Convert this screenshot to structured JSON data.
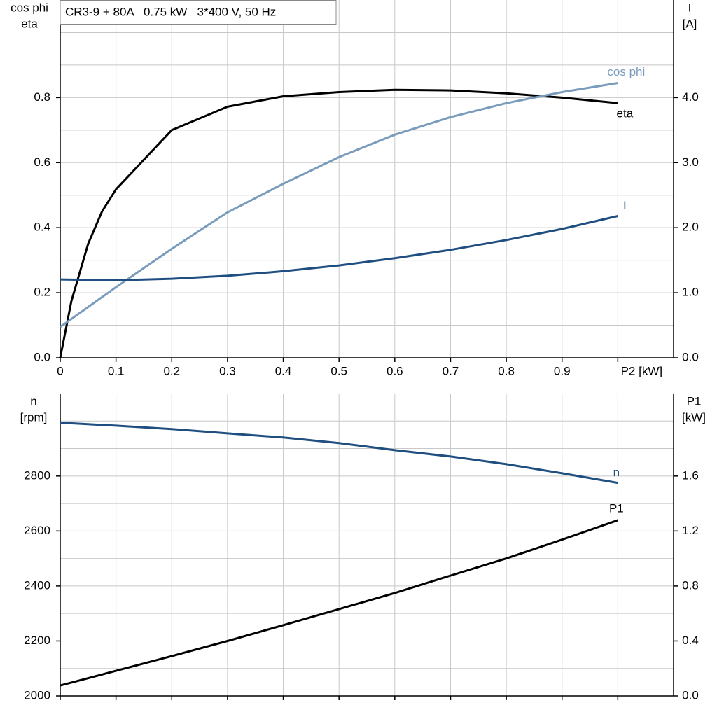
{
  "chart_data": [
    {
      "type": "line",
      "title": "CR3-9 + 80A   0.75 kW   3*400 V, 50 Hz",
      "ylabel": [
        "cos phi",
        "eta"
      ],
      "y2label": [
        "I",
        "[A]"
      ],
      "xlim": [
        0,
        1.1
      ],
      "xticks": [
        0,
        0.1,
        0.2,
        0.3,
        0.4,
        0.5,
        0.6,
        0.7,
        0.8,
        0.9,
        {
          "value": 1.0,
          "label": "P2 [kW]"
        }
      ],
      "ylim": [
        0,
        1.1
      ],
      "yticks": [
        {
          "value": 0,
          "label": "0.0"
        },
        0.2,
        0.4,
        0.6,
        0.8
      ],
      "minor_yticks": [
        0.1,
        0.3,
        0.5,
        0.7,
        0.9,
        1.0
      ],
      "y2lim": [
        0,
        5.5
      ],
      "y2ticks": [
        {
          "value": 0,
          "label": "0.0"
        },
        {
          "value": 1,
          "label": "1.0"
        },
        {
          "value": 2,
          "label": "2.0"
        },
        {
          "value": 3,
          "label": "3.0"
        },
        {
          "value": 4,
          "label": "4.0"
        }
      ],
      "xtick_labels": true,
      "grid": true,
      "series": [
        {
          "name": "eta",
          "color": "#000000",
          "axis": "y",
          "x": [
            0,
            0.02,
            0.05,
            0.075,
            0.1,
            0.2,
            0.3,
            0.4,
            0.5,
            0.6,
            0.7,
            0.8,
            0.9,
            1.0
          ],
          "values": [
            0,
            0.174,
            0.35,
            0.45,
            0.518,
            0.7,
            0.772,
            0.804,
            0.817,
            0.824,
            0.822,
            0.813,
            0.8,
            0.783
          ]
        },
        {
          "name": "cos phi",
          "color": "#7a9cbc",
          "axis": "y",
          "x": [
            0,
            0.1,
            0.2,
            0.3,
            0.4,
            0.5,
            0.6,
            0.7,
            0.8,
            0.9,
            1.0
          ],
          "values": [
            0.095,
            0.217,
            0.335,
            0.447,
            0.535,
            0.617,
            0.686,
            0.74,
            0.783,
            0.817,
            0.845
          ]
        },
        {
          "name": "I",
          "color": "#1f4e80",
          "axis": "y2",
          "x": [
            0,
            0.1,
            0.2,
            0.3,
            0.4,
            0.5,
            0.6,
            0.7,
            0.8,
            0.9,
            1.0
          ],
          "values": [
            1.204,
            1.19,
            1.215,
            1.26,
            1.33,
            1.42,
            1.53,
            1.66,
            1.81,
            1.98,
            2.18
          ]
        }
      ]
    },
    {
      "type": "line",
      "ylabel": [
        "n",
        "[rpm]"
      ],
      "y2label": [
        "P1",
        "[kW]"
      ],
      "xlim": [
        0,
        1.1
      ],
      "xticks": [
        0,
        0.1,
        0.2,
        0.3,
        0.4,
        0.5,
        0.6,
        0.7,
        0.8,
        0.9,
        1.0
      ],
      "ylim": [
        2000,
        3100
      ],
      "yticks": [
        2000,
        2200,
        2400,
        2600,
        2800
      ],
      "minor_yticks": [
        2100,
        2300,
        2500,
        2700,
        2900,
        3000
      ],
      "y2lim": [
        0,
        2.2
      ],
      "y2ticks": [
        {
          "value": 0,
          "label": "0.0"
        },
        0.4,
        0.8,
        1.2,
        1.6
      ],
      "xtick_labels": false,
      "grid": true,
      "series": [
        {
          "name": "n",
          "color": "#1f4e80",
          "axis": "y",
          "x": [
            0,
            0.1,
            0.2,
            0.3,
            0.4,
            0.5,
            0.6,
            0.7,
            0.8,
            0.9,
            1.0
          ],
          "values": [
            2994,
            2983,
            2971,
            2955,
            2940,
            2920,
            2894,
            2871,
            2843,
            2810,
            2775
          ]
        },
        {
          "name": "P1",
          "color": "#000000",
          "axis": "y2",
          "x": [
            0,
            0.1,
            0.2,
            0.3,
            0.4,
            0.5,
            0.6,
            0.7,
            0.8,
            0.9,
            1.0
          ],
          "values": [
            0.076,
            0.183,
            0.29,
            0.4,
            0.515,
            0.632,
            0.749,
            0.876,
            1.0,
            1.137,
            1.279
          ]
        }
      ]
    }
  ]
}
